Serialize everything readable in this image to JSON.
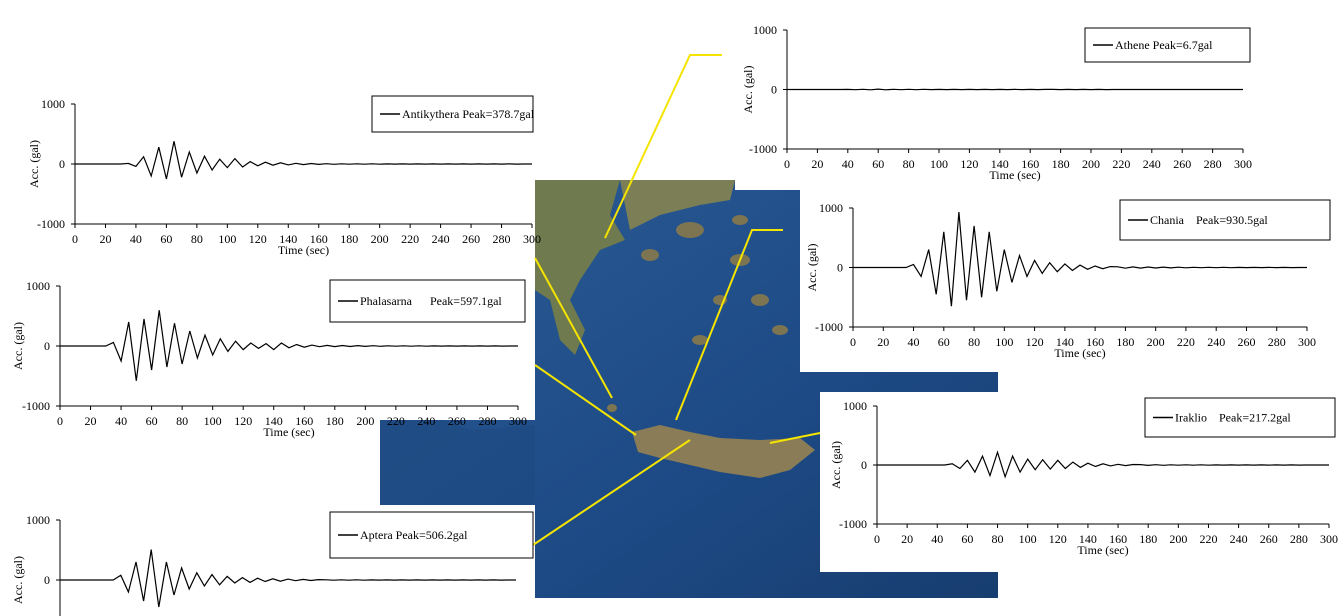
{
  "chart_data": [
    {
      "type": "line",
      "xlabel": "Time (sec)",
      "ylabel": "Acc. (gal)",
      "xlim": [
        0,
        300
      ],
      "ylim": [
        -1000,
        1000
      ],
      "xticks": [
        0,
        20,
        40,
        60,
        80,
        100,
        120,
        140,
        160,
        180,
        200,
        220,
        240,
        260,
        280,
        300
      ],
      "yticks": [
        -1000,
        0,
        1000
      ],
      "x": [
        0,
        5,
        10,
        15,
        20,
        25,
        30,
        35,
        40,
        45,
        50,
        55,
        60,
        65,
        70,
        75,
        80,
        85,
        90,
        95,
        100,
        105,
        110,
        115,
        120,
        125,
        130,
        135,
        140,
        145,
        150,
        155,
        160,
        165,
        170,
        175,
        180,
        185,
        190,
        195,
        200,
        205,
        210,
        215,
        220,
        225,
        230,
        235,
        240,
        245,
        250,
        255,
        260,
        265,
        270,
        275,
        280,
        285,
        290,
        295,
        300
      ],
      "series": [
        {
          "name": "Athene Peak=6.7gal",
          "color": "#000000",
          "values": [
            0,
            0,
            0,
            0,
            0,
            0,
            0,
            0,
            2,
            -3,
            4,
            -5,
            6.7,
            -5,
            4,
            -4,
            3,
            -3,
            3,
            -2,
            2,
            -2,
            2,
            -2,
            1,
            -1,
            1,
            -1,
            1,
            -1,
            1,
            -1,
            1,
            -1,
            1,
            1,
            -1,
            1,
            -1,
            1,
            -1,
            1,
            -1,
            0,
            0,
            0,
            0,
            0,
            0,
            0,
            0,
            0,
            0,
            0,
            0,
            0,
            0,
            0,
            0,
            0,
            0
          ]
        }
      ]
    },
    {
      "type": "line",
      "xlabel": "Time (sec)",
      "ylabel": "Acc. (gal)",
      "xlim": [
        0,
        300
      ],
      "ylim": [
        -1000,
        1000
      ],
      "xticks": [
        0,
        20,
        40,
        60,
        80,
        100,
        120,
        140,
        160,
        180,
        200,
        220,
        240,
        260,
        280,
        300
      ],
      "yticks": [
        -1000,
        0,
        1000
      ],
      "x": [
        0,
        5,
        10,
        15,
        20,
        25,
        30,
        35,
        40,
        45,
        50,
        55,
        60,
        65,
        70,
        75,
        80,
        85,
        90,
        95,
        100,
        105,
        110,
        115,
        120,
        125,
        130,
        135,
        140,
        145,
        150,
        155,
        160,
        165,
        170,
        175,
        180,
        185,
        190,
        195,
        200,
        205,
        210,
        215,
        220,
        225,
        230,
        235,
        240,
        245,
        250,
        255,
        260,
        265,
        270,
        275,
        280,
        285,
        290,
        295,
        300
      ],
      "series": [
        {
          "name": "Antikythera Peak=378.7gal",
          "color": "#000000",
          "values": [
            0,
            0,
            0,
            0,
            0,
            0,
            0,
            10,
            -40,
            120,
            -200,
            280,
            -250,
            378.7,
            -220,
            200,
            -150,
            130,
            -100,
            80,
            -60,
            90,
            -50,
            40,
            -30,
            30,
            -20,
            20,
            -15,
            12,
            -10,
            8,
            -6,
            5,
            -5,
            4,
            -4,
            3,
            -3,
            3,
            -3,
            2,
            -2,
            2,
            -2,
            2,
            -2,
            2,
            -2,
            1,
            -1,
            1,
            -1,
            1,
            -1,
            1,
            -1,
            1,
            -1,
            0,
            0
          ]
        }
      ]
    },
    {
      "type": "line",
      "xlabel": "Time (sec)",
      "ylabel": "Acc. (gal)",
      "xlim": [
        0,
        300
      ],
      "ylim": [
        -1000,
        1000
      ],
      "xticks": [
        0,
        20,
        40,
        60,
        80,
        100,
        120,
        140,
        160,
        180,
        200,
        220,
        240,
        260,
        280,
        300
      ],
      "yticks": [
        -1000,
        0,
        1000
      ],
      "x": [
        0,
        5,
        10,
        15,
        20,
        25,
        30,
        35,
        40,
        45,
        50,
        55,
        60,
        65,
        70,
        75,
        80,
        85,
        90,
        95,
        100,
        105,
        110,
        115,
        120,
        125,
        130,
        135,
        140,
        145,
        150,
        155,
        160,
        165,
        170,
        175,
        180,
        185,
        190,
        195,
        200,
        205,
        210,
        215,
        220,
        225,
        230,
        235,
        240,
        245,
        250,
        255,
        260,
        265,
        270,
        275,
        280,
        285,
        290,
        295,
        300
      ],
      "series": [
        {
          "name": "Chania    Peak=930.5gal",
          "color": "#000000",
          "values": [
            0,
            0,
            0,
            0,
            0,
            0,
            0,
            0,
            50,
            -150,
            300,
            -450,
            600,
            -650,
            930.5,
            -550,
            700,
            -500,
            600,
            -400,
            300,
            -250,
            200,
            -150,
            120,
            -100,
            80,
            -70,
            60,
            -50,
            40,
            -30,
            25,
            -20,
            15,
            12,
            -12,
            10,
            -10,
            8,
            -8,
            6,
            -6,
            5,
            -5,
            4,
            -4,
            3,
            -3,
            3,
            -3,
            2,
            -2,
            2,
            -2,
            1,
            -1,
            1,
            -1,
            0,
            0
          ]
        }
      ]
    },
    {
      "type": "line",
      "xlabel": "Time (sec)",
      "ylabel": "Acc. (gal)",
      "xlim": [
        0,
        300
      ],
      "ylim": [
        -1000,
        1000
      ],
      "xticks": [
        0,
        20,
        40,
        60,
        80,
        100,
        120,
        140,
        160,
        180,
        200,
        220,
        240,
        260,
        280,
        300
      ],
      "yticks": [
        -1000,
        0,
        1000
      ],
      "x": [
        0,
        5,
        10,
        15,
        20,
        25,
        30,
        35,
        40,
        45,
        50,
        55,
        60,
        65,
        70,
        75,
        80,
        85,
        90,
        95,
        100,
        105,
        110,
        115,
        120,
        125,
        130,
        135,
        140,
        145,
        150,
        155,
        160,
        165,
        170,
        175,
        180,
        185,
        190,
        195,
        200,
        205,
        210,
        215,
        220,
        225,
        230,
        235,
        240,
        245,
        250,
        255,
        260,
        265,
        270,
        275,
        280,
        285,
        290,
        295,
        300
      ],
      "series": [
        {
          "name": "Phalasarna      Peak=597.1gal",
          "color": "#000000",
          "values": [
            0,
            0,
            0,
            0,
            0,
            0,
            0,
            60,
            -250,
            400,
            -580,
            450,
            -400,
            597.1,
            -350,
            380,
            -300,
            250,
            -200,
            180,
            -150,
            120,
            -90,
            80,
            -60,
            50,
            -40,
            40,
            -60,
            50,
            -30,
            25,
            -20,
            15,
            -12,
            10,
            -10,
            8,
            -8,
            6,
            -6,
            5,
            -5,
            4,
            -4,
            3,
            -3,
            3,
            -3,
            2,
            -2,
            2,
            -2,
            1,
            -1,
            1,
            -1,
            1,
            -1,
            0,
            0
          ]
        }
      ]
    },
    {
      "type": "line",
      "xlabel": "Time (sec)",
      "ylabel": "Acc. (gal)",
      "xlim": [
        0,
        300
      ],
      "ylim": [
        -1000,
        1000
      ],
      "xticks": [
        0,
        20,
        40,
        60,
        80,
        100,
        120,
        140,
        160,
        180,
        200,
        220,
        240,
        260,
        280,
        300
      ],
      "yticks": [
        -1000,
        0,
        1000
      ],
      "x": [
        0,
        5,
        10,
        15,
        20,
        25,
        30,
        35,
        40,
        45,
        50,
        55,
        60,
        65,
        70,
        75,
        80,
        85,
        90,
        95,
        100,
        105,
        110,
        115,
        120,
        125,
        130,
        135,
        140,
        145,
        150,
        155,
        160,
        165,
        170,
        175,
        180,
        185,
        190,
        195,
        200,
        205,
        210,
        215,
        220,
        225,
        230,
        235,
        240,
        245,
        250,
        255,
        260,
        265,
        270,
        275,
        280,
        285,
        290,
        295,
        300
      ],
      "series": [
        {
          "name": "Iraklio    Peak=217.2gal",
          "color": "#000000",
          "values": [
            0,
            0,
            0,
            0,
            0,
            0,
            0,
            0,
            0,
            0,
            20,
            -60,
            80,
            -120,
            150,
            -180,
            217.2,
            -200,
            150,
            -120,
            100,
            -80,
            90,
            -70,
            80,
            -60,
            50,
            -40,
            30,
            -25,
            20,
            -15,
            12,
            -10,
            8,
            6,
            -6,
            5,
            -5,
            4,
            -4,
            3,
            -3,
            3,
            -3,
            2,
            -2,
            2,
            -2,
            1,
            -1,
            1,
            -1,
            1,
            -1,
            1,
            -1,
            0,
            0,
            0,
            0
          ]
        }
      ]
    },
    {
      "type": "line",
      "ylabel": "Acc. (gal)",
      "xlim": [
        0,
        300
      ],
      "ylim": [
        -1000,
        1000
      ],
      "yticks": [
        0,
        1000
      ],
      "x": [
        0,
        5,
        10,
        15,
        20,
        25,
        30,
        35,
        40,
        45,
        50,
        55,
        60,
        65,
        70,
        75,
        80,
        85,
        90,
        95,
        100,
        105,
        110,
        115,
        120,
        125,
        130,
        135,
        140,
        145,
        150,
        155,
        160,
        165,
        170,
        175,
        180,
        185,
        190,
        195,
        200,
        205,
        210,
        215,
        220,
        225,
        230,
        235,
        240,
        245,
        250,
        255,
        260,
        265,
        270,
        275,
        280,
        285,
        290,
        295,
        300
      ],
      "series": [
        {
          "name": "Aptera Peak=506.2gal",
          "color": "#000000",
          "values": [
            0,
            0,
            0,
            0,
            0,
            0,
            0,
            0,
            80,
            -200,
            300,
            -350,
            506.2,
            -450,
            300,
            -250,
            200,
            -150,
            120,
            -100,
            90,
            -80,
            60,
            -50,
            40,
            -40,
            30,
            -25,
            20,
            -20,
            15,
            -12,
            10,
            -8,
            6,
            4,
            -4,
            3,
            -3,
            3,
            -3,
            2,
            -2,
            2,
            -2,
            2,
            -2,
            2,
            -2,
            1,
            -1,
            1,
            -1,
            1,
            -1,
            1,
            -1,
            1,
            -1,
            0,
            0
          ]
        }
      ]
    }
  ]
}
